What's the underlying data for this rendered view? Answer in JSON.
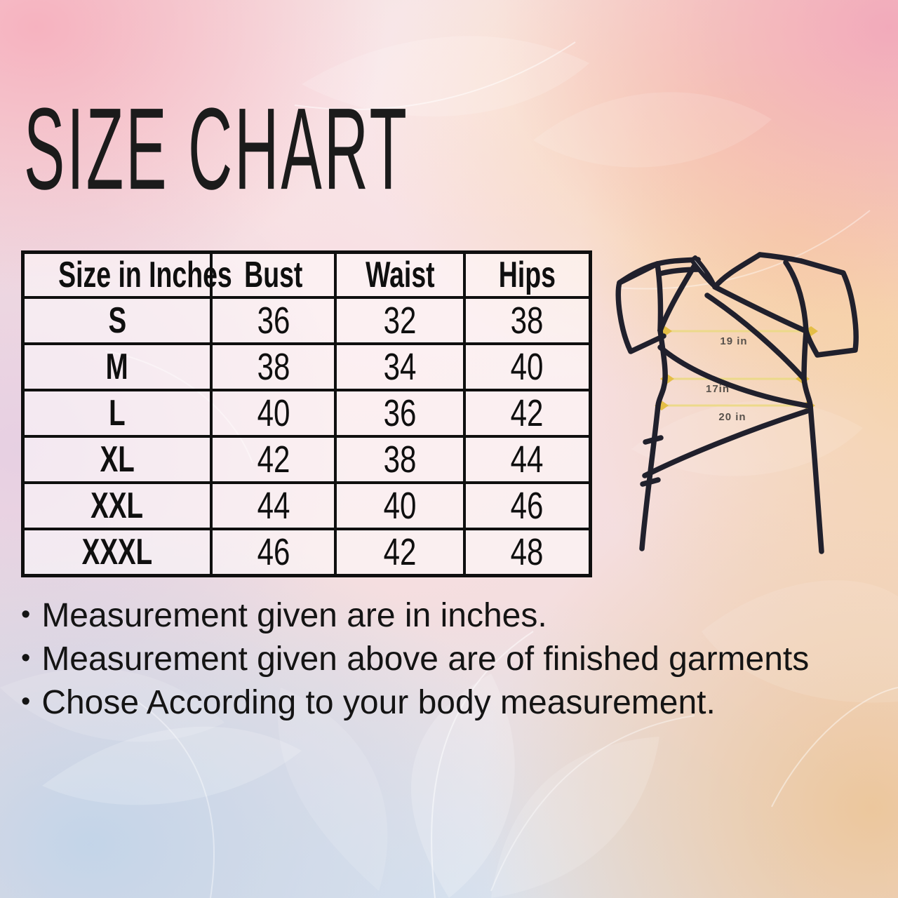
{
  "title": "SIZE CHART",
  "table": {
    "headers": [
      "Size in Inches",
      "Bust",
      "Waist",
      "Hips"
    ],
    "rows": [
      [
        "S",
        "36",
        "32",
        "38"
      ],
      [
        "M",
        "38",
        "34",
        "40"
      ],
      [
        "L",
        "40",
        "36",
        "42"
      ],
      [
        "XL",
        "42",
        "38",
        "44"
      ],
      [
        "XXL",
        "44",
        "40",
        "46"
      ],
      [
        "XXXL",
        "46",
        "42",
        "48"
      ]
    ]
  },
  "garment": {
    "bust_label": "19 in",
    "waist_label": "17in",
    "hip_label": "20 in"
  },
  "notes_bullet": "•",
  "notes": [
    "Measurement given are in inches.",
    "Measurement given above are of finished garments",
    "Chose According to your body measurement."
  ],
  "colors": {
    "garment_outline": "#20202c",
    "measure_line": "#ecd98a",
    "measure_marker": "#e4be46",
    "table_border": "#0f0f0f",
    "text": "#161616",
    "bg_pink": "#f6b0c0",
    "bg_peach": "#f7d3ac",
    "bg_blue": "#c7d7e9",
    "bg_lavender": "#e4cde3"
  }
}
